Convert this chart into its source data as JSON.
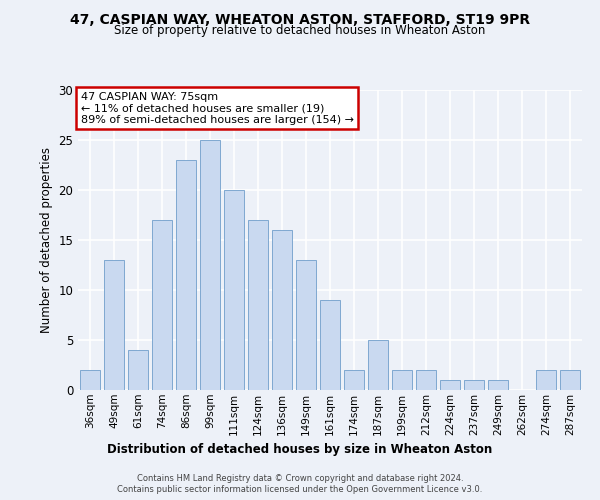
{
  "title1": "47, CASPIAN WAY, WHEATON ASTON, STAFFORD, ST19 9PR",
  "title2": "Size of property relative to detached houses in Wheaton Aston",
  "xlabel": "Distribution of detached houses by size in Wheaton Aston",
  "ylabel": "Number of detached properties",
  "categories": [
    "36sqm",
    "49sqm",
    "61sqm",
    "74sqm",
    "86sqm",
    "99sqm",
    "111sqm",
    "124sqm",
    "136sqm",
    "149sqm",
    "161sqm",
    "174sqm",
    "187sqm",
    "199sqm",
    "212sqm",
    "224sqm",
    "237sqm",
    "249sqm",
    "262sqm",
    "274sqm",
    "287sqm"
  ],
  "values": [
    2,
    13,
    4,
    17,
    23,
    25,
    20,
    17,
    16,
    13,
    9,
    2,
    5,
    2,
    2,
    1,
    1,
    1,
    0,
    2,
    2
  ],
  "bar_color": "#c9d9f0",
  "bar_edge_color": "#7fa8d0",
  "ylim": [
    0,
    30
  ],
  "yticks": [
    0,
    5,
    10,
    15,
    20,
    25,
    30
  ],
  "annotation_text": "47 CASPIAN WAY: 75sqm\n← 11% of detached houses are smaller (19)\n89% of semi-detached houses are larger (154) →",
  "annotation_box_color": "#ffffff",
  "annotation_box_edge_color": "#cc0000",
  "footer1": "Contains HM Land Registry data © Crown copyright and database right 2024.",
  "footer2": "Contains public sector information licensed under the Open Government Licence v3.0.",
  "bg_color": "#edf1f8",
  "grid_color": "#ffffff"
}
